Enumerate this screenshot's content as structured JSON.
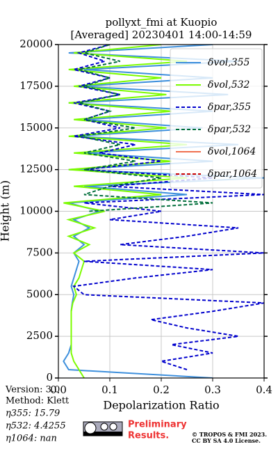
{
  "chart_data": {
    "type": "line",
    "orientation": "horizontal",
    "title": "pollyxt_fmi at Kuopio",
    "subtitle": "[Averaged] 20230401 14:00-14:59",
    "xlabel": "Depolarization Ratio",
    "ylabel": "Height (m)",
    "xlim": [
      0,
      0.4
    ],
    "xticks": [
      {
        "value": 0,
        "label": "0.0"
      },
      0.1,
      0.2,
      0.3,
      0.4
    ],
    "ylim": [
      0,
      20000
    ],
    "yticks": [
      0,
      2500,
      5000,
      7500,
      10000,
      12500,
      15000,
      17500,
      20000
    ],
    "grid": true,
    "legend": "upper right",
    "heights": [
      0,
      500,
      1000,
      1500,
      2000,
      2500,
      3000,
      3500,
      4000,
      4500,
      5000,
      5500,
      6000,
      6500,
      7000,
      7500,
      8000,
      8500,
      9000,
      9500,
      10000,
      10500,
      11000,
      11500,
      12000,
      12500,
      13000,
      13500,
      14000,
      14500,
      15000,
      15500,
      16000,
      16500,
      17000,
      17500,
      18000,
      18500,
      19000,
      19500,
      20000
    ],
    "series": [
      {
        "name": "δvol,355",
        "color": "#3d8fdc",
        "linestyle": "solid",
        "values": [
          0.3,
          0.02,
          0.01,
          0.02,
          0.025,
          0.025,
          0.025,
          0.025,
          0.025,
          0.027,
          0.03,
          0.025,
          0.03,
          0.035,
          0.04,
          0.03,
          0.05,
          0.03,
          0.06,
          0.03,
          0.08,
          0.02,
          0.25,
          0.05,
          0.4,
          0.02,
          0.3,
          0.05,
          0.35,
          0.03,
          0.28,
          0.05,
          0.3,
          0.02,
          0.33,
          0.04,
          0.3,
          0.05,
          0.35,
          0.02,
          0.3
        ]
      },
      {
        "name": "δvol,532",
        "color": "#7cfc00",
        "linestyle": "solid",
        "values": [
          0.05,
          0.04,
          0.03,
          0.025,
          0.025,
          0.025,
          0.025,
          0.025,
          0.025,
          0.028,
          0.035,
          0.03,
          0.04,
          0.045,
          0.05,
          0.03,
          0.06,
          0.02,
          0.07,
          0.02,
          0.09,
          0.01,
          0.2,
          0.03,
          0.25,
          0.02,
          0.22,
          0.03,
          0.25,
          0.02,
          0.21,
          0.03,
          0.22,
          0.02,
          0.21,
          0.03,
          0.2,
          0.02,
          0.25,
          0.03,
          0.2
        ]
      },
      {
        "name": "δpar,355",
        "color": "#0000cd",
        "linestyle": "dashed",
        "values": [
          null,
          0.25,
          0.2,
          0.3,
          0.22,
          0.35,
          0.25,
          0.18,
          0.3,
          0.4,
          0.05,
          0.03,
          0.15,
          0.3,
          0.05,
          0.4,
          0.12,
          0.25,
          0.35,
          0.1,
          0.2,
          0.05,
          0.4,
          0.1,
          0.3,
          0.05,
          0.2,
          0.08,
          0.15,
          0.03,
          0.12,
          0.05,
          0.1,
          0.03,
          0.12,
          0.04,
          0.1,
          0.03,
          0.09,
          0.04,
          0.1
        ]
      },
      {
        "name": "δpar,532",
        "color": "#006e3a",
        "linestyle": "dashed",
        "values": [
          null,
          null,
          null,
          null,
          null,
          null,
          null,
          null,
          null,
          null,
          null,
          null,
          null,
          null,
          null,
          null,
          null,
          null,
          null,
          null,
          0.06,
          0.3,
          0.05,
          0.1,
          0.2,
          0.05,
          0.15,
          0.05,
          0.12,
          0.04,
          0.15,
          0.05,
          0.1,
          0.04,
          0.12,
          0.05,
          0.1,
          0.04,
          0.12,
          0.05,
          0.1
        ]
      },
      {
        "name": "δvol,1064",
        "color": "#f07050",
        "linestyle": "solid",
        "values": [
          null,
          null,
          null,
          null,
          null,
          null,
          null,
          null,
          null,
          null,
          null,
          null,
          null,
          null,
          null,
          null,
          null,
          null,
          null,
          null,
          null,
          null,
          null,
          null,
          null,
          null,
          null,
          null,
          null,
          null,
          null,
          null,
          null,
          null,
          null,
          null,
          null,
          null,
          null,
          null,
          null
        ]
      },
      {
        "name": "δpar,1064",
        "color": "#cc0000",
        "linestyle": "dashed",
        "values": [
          null,
          null,
          null,
          null,
          null,
          null,
          null,
          null,
          null,
          null,
          null,
          null,
          null,
          null,
          null,
          null,
          null,
          null,
          null,
          null,
          null,
          null,
          null,
          null,
          null,
          null,
          null,
          null,
          null,
          null,
          null,
          null,
          null,
          null,
          null,
          null,
          null,
          null,
          null,
          null,
          null
        ]
      }
    ]
  },
  "info": {
    "version": "Version: 3.0",
    "method": "Method: Klett",
    "eta355": "η355:  15.79",
    "eta532": "η532: 4.4255",
    "eta1064": "η1064:    nan"
  },
  "footer": {
    "preliminary": "Preliminary",
    "results": "Results.",
    "copyright": "© TROPOS & FMI 2023.",
    "license": "CC BY SA 4.0 License."
  }
}
